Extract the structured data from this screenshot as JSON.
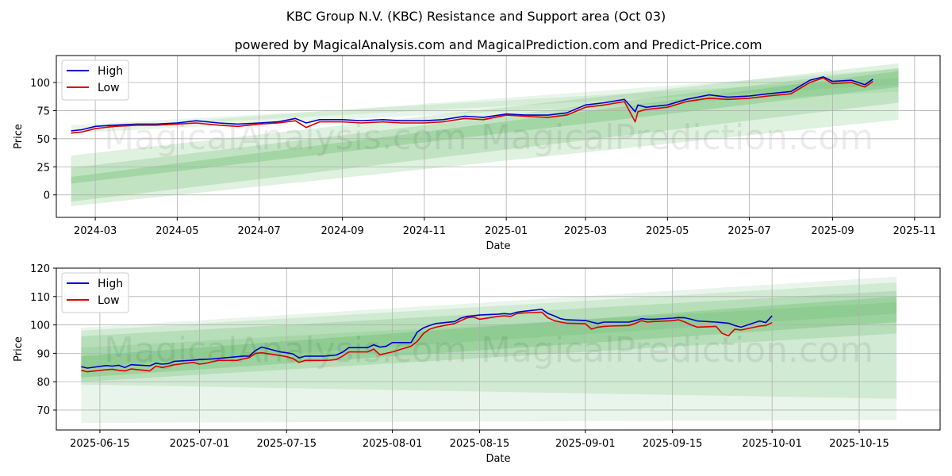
{
  "title": "KBC Group N.V. (KBC) Resistance and Support area (Oct 03)",
  "subtitle": "powered by MagicalAnalysis.com and MagicalPrediction.com and Predict-Price.com",
  "watermarks": [
    "MagicalAnalysis.com",
    "MagicalPrediction.com"
  ],
  "colors": {
    "high": "#0000cc",
    "low": "#dd0000",
    "band": "#4caf50",
    "grid": "#b0b0b0"
  },
  "chart_data": [
    {
      "type": "line",
      "xlabel": "Date",
      "ylabel": "Price",
      "xlim": [
        "2024-02-01",
        "2025-11-20"
      ],
      "ylim": [
        -20,
        124
      ],
      "yticks": [
        0,
        25,
        50,
        75,
        100
      ],
      "xticks": [
        "2024-03-01",
        "2024-05-01",
        "2024-07-01",
        "2024-09-01",
        "2024-11-01",
        "2025-01-01",
        "2025-03-01",
        "2025-05-01",
        "2025-07-01",
        "2025-09-01",
        "2025-11-01"
      ],
      "xtick_labels": [
        "2024-03",
        "2024-05",
        "2024-07",
        "2024-09",
        "2024-11",
        "2025-01",
        "2025-03",
        "2025-05",
        "2025-07",
        "2025-09",
        "2025-11"
      ],
      "legend": {
        "placement": "top-left",
        "entries": [
          "High",
          "Low"
        ]
      },
      "bands": [
        {
          "x0": "2024-02-12",
          "x1": "2025-10-20",
          "lo0": -10,
          "hi0": 35,
          "lo1": 67,
          "hi1": 117,
          "opacity": 0.18
        },
        {
          "x0": "2024-02-12",
          "x1": "2025-10-20",
          "lo0": -6,
          "hi0": 24,
          "lo1": 82,
          "hi1": 113,
          "opacity": 0.2
        },
        {
          "x0": "2024-02-12",
          "x1": "2025-10-20",
          "lo0": 10,
          "hi0": 16,
          "lo1": 96,
          "hi1": 110,
          "opacity": 0.25
        },
        {
          "x0": "2024-02-12",
          "x1": "2025-10-20",
          "lo0": 55,
          "hi0": 58,
          "lo1": 92,
          "hi1": 112,
          "opacity": 0.12
        },
        {
          "x0": "2024-02-12",
          "x1": "2025-10-20",
          "lo0": 58,
          "hi0": 62,
          "lo1": 98,
          "hi1": 104,
          "opacity": 0.12
        }
      ],
      "series": [
        {
          "name": "High",
          "x": [
            "2024-02-12",
            "2024-02-20",
            "2024-03-01",
            "2024-03-15",
            "2024-04-01",
            "2024-04-15",
            "2024-05-01",
            "2024-05-15",
            "2024-06-01",
            "2024-06-15",
            "2024-07-01",
            "2024-07-15",
            "2024-07-28",
            "2024-08-05",
            "2024-08-15",
            "2024-09-01",
            "2024-09-15",
            "2024-10-01",
            "2024-10-15",
            "2024-11-01",
            "2024-11-15",
            "2024-12-01",
            "2024-12-15",
            "2025-01-01",
            "2025-01-15",
            "2025-02-01",
            "2025-02-15",
            "2025-03-01",
            "2025-03-15",
            "2025-03-30",
            "2025-04-07",
            "2025-04-09",
            "2025-04-15",
            "2025-05-01",
            "2025-05-15",
            "2025-06-01",
            "2025-06-15",
            "2025-07-01",
            "2025-07-15",
            "2025-08-01",
            "2025-08-15",
            "2025-08-25",
            "2025-09-01",
            "2025-09-15",
            "2025-09-25",
            "2025-10-01"
          ],
          "values": [
            57,
            58,
            61,
            62,
            63,
            63,
            64,
            66,
            64,
            63,
            64,
            65,
            68,
            64,
            67,
            67,
            66,
            67,
            66,
            66,
            67,
            70,
            69,
            72,
            71,
            71,
            73,
            80,
            82,
            85,
            74,
            80,
            78,
            80,
            85,
            89,
            87,
            88,
            90,
            92,
            102,
            105,
            101,
            102,
            98,
            103
          ]
        },
        {
          "name": "Low",
          "x": [
            "2024-02-12",
            "2024-02-20",
            "2024-03-01",
            "2024-03-15",
            "2024-04-01",
            "2024-04-15",
            "2024-05-01",
            "2024-05-15",
            "2024-06-01",
            "2024-06-15",
            "2024-07-01",
            "2024-07-15",
            "2024-07-28",
            "2024-08-05",
            "2024-08-15",
            "2024-09-01",
            "2024-09-15",
            "2024-10-01",
            "2024-10-15",
            "2024-11-01",
            "2024-11-15",
            "2024-12-01",
            "2024-12-15",
            "2025-01-01",
            "2025-01-15",
            "2025-02-01",
            "2025-02-15",
            "2025-03-01",
            "2025-03-15",
            "2025-03-30",
            "2025-04-07",
            "2025-04-09",
            "2025-04-15",
            "2025-05-01",
            "2025-05-15",
            "2025-06-01",
            "2025-06-15",
            "2025-07-01",
            "2025-07-15",
            "2025-08-01",
            "2025-08-15",
            "2025-08-25",
            "2025-09-01",
            "2025-09-15",
            "2025-09-25",
            "2025-10-01"
          ],
          "values": [
            55,
            56,
            59,
            61,
            62,
            62,
            63,
            64,
            62,
            61,
            63,
            64,
            66,
            60,
            65,
            65,
            64,
            65,
            64,
            64,
            65,
            68,
            67,
            71,
            70,
            69,
            71,
            78,
            80,
            83,
            65,
            74,
            76,
            78,
            83,
            86,
            85,
            86,
            88,
            90,
            100,
            104,
            99,
            100,
            96,
            101
          ]
        }
      ]
    },
    {
      "type": "line",
      "xlabel": "Date",
      "ylabel": "Price",
      "xlim": [
        "2025-06-08",
        "2025-10-28"
      ],
      "ylim": [
        63,
        120
      ],
      "yticks": [
        70,
        80,
        90,
        100,
        110,
        120
      ],
      "xticks": [
        "2025-06-15",
        "2025-07-01",
        "2025-07-15",
        "2025-08-01",
        "2025-08-15",
        "2025-09-01",
        "2025-09-15",
        "2025-10-01",
        "2025-10-15"
      ],
      "xtick_labels": [
        "2025-06-15",
        "2025-07-01",
        "2025-07-15",
        "2025-08-01",
        "2025-08-15",
        "2025-09-01",
        "2025-09-15",
        "2025-10-01",
        "2025-10-15"
      ],
      "legend": {
        "placement": "top-left",
        "entries": [
          "High",
          "Low"
        ]
      },
      "bands": [
        {
          "x0": "2025-06-12",
          "x1": "2025-10-21",
          "lo0": 65.5,
          "hi0": 99,
          "lo1": 66.5,
          "hi1": 117,
          "opacity": 0.12
        },
        {
          "x0": "2025-06-12",
          "x1": "2025-10-21",
          "lo0": 79,
          "hi0": 98,
          "lo1": 74,
          "hi1": 115,
          "opacity": 0.15
        },
        {
          "x0": "2025-06-12",
          "x1": "2025-10-21",
          "lo0": 80,
          "hi0": 96,
          "lo1": 97,
          "hi1": 112,
          "opacity": 0.2
        },
        {
          "x0": "2025-06-12",
          "x1": "2025-10-21",
          "lo0": 81.5,
          "hi0": 89,
          "lo1": 101,
          "hi1": 110,
          "opacity": 0.25
        },
        {
          "x0": "2025-06-12",
          "x1": "2025-10-21",
          "lo0": 85,
          "hi0": 92,
          "lo1": 104,
          "hi1": 108,
          "opacity": 0.15
        }
      ],
      "series": [
        {
          "name": "High",
          "x": [
            "2025-06-12",
            "2025-06-13",
            "2025-06-16",
            "2025-06-17",
            "2025-06-18",
            "2025-06-19",
            "2025-06-20",
            "2025-06-23",
            "2025-06-24",
            "2025-06-25",
            "2025-06-26",
            "2025-06-27",
            "2025-06-30",
            "2025-07-01",
            "2025-07-02",
            "2025-07-03",
            "2025-07-04",
            "2025-07-07",
            "2025-07-08",
            "2025-07-09",
            "2025-07-10",
            "2025-07-11",
            "2025-07-14",
            "2025-07-15",
            "2025-07-16",
            "2025-07-17",
            "2025-07-18",
            "2025-07-21",
            "2025-07-22",
            "2025-07-23",
            "2025-07-24",
            "2025-07-25",
            "2025-07-28",
            "2025-07-29",
            "2025-07-30",
            "2025-07-31",
            "2025-08-01",
            "2025-08-04",
            "2025-08-05",
            "2025-08-06",
            "2025-08-07",
            "2025-08-08",
            "2025-08-11",
            "2025-08-12",
            "2025-08-13",
            "2025-08-14",
            "2025-08-15",
            "2025-08-18",
            "2025-08-19",
            "2025-08-20",
            "2025-08-21",
            "2025-08-22",
            "2025-08-25",
            "2025-08-26",
            "2025-08-27",
            "2025-08-28",
            "2025-08-29",
            "2025-09-01",
            "2025-09-02",
            "2025-09-03",
            "2025-09-04",
            "2025-09-05",
            "2025-09-08",
            "2025-09-09",
            "2025-09-10",
            "2025-09-11",
            "2025-09-12",
            "2025-09-15",
            "2025-09-16",
            "2025-09-17",
            "2025-09-18",
            "2025-09-19",
            "2025-09-22",
            "2025-09-23",
            "2025-09-24",
            "2025-09-25",
            "2025-09-26",
            "2025-09-29",
            "2025-09-30",
            "2025-10-01"
          ],
          "values": [
            85.3,
            84.8,
            85.7,
            85.5,
            85.8,
            85.0,
            86.0,
            85.6,
            86.5,
            86.2,
            86.4,
            87.2,
            87.6,
            87.8,
            87.9,
            88.0,
            88.2,
            88.8,
            89.0,
            89.0,
            91.0,
            92.2,
            90.5,
            90.2,
            89.8,
            88.4,
            89.0,
            89.0,
            89.2,
            89.4,
            90.4,
            92.0,
            92.0,
            93.0,
            92.2,
            92.5,
            93.8,
            93.8,
            97.5,
            99.0,
            99.8,
            100.5,
            101.2,
            102.4,
            103.0,
            103.2,
            103.5,
            103.8,
            104.0,
            103.8,
            104.5,
            104.8,
            105.5,
            104.0,
            103.2,
            102.2,
            101.8,
            101.6,
            101.0,
            100.5,
            101.0,
            101.0,
            101.0,
            101.5,
            102.2,
            102.0,
            102.0,
            102.4,
            102.6,
            102.5,
            102.0,
            101.4,
            101.0,
            100.8,
            100.6,
            99.8,
            99.2,
            101.4,
            100.8,
            103.2
          ]
        },
        {
          "name": "Low",
          "x": [
            "2025-06-12",
            "2025-06-13",
            "2025-06-16",
            "2025-06-17",
            "2025-06-18",
            "2025-06-19",
            "2025-06-20",
            "2025-06-23",
            "2025-06-24",
            "2025-06-25",
            "2025-06-26",
            "2025-06-27",
            "2025-06-30",
            "2025-07-01",
            "2025-07-02",
            "2025-07-03",
            "2025-07-04",
            "2025-07-07",
            "2025-07-08",
            "2025-07-09",
            "2025-07-10",
            "2025-07-11",
            "2025-07-14",
            "2025-07-15",
            "2025-07-16",
            "2025-07-17",
            "2025-07-18",
            "2025-07-21",
            "2025-07-22",
            "2025-07-23",
            "2025-07-24",
            "2025-07-25",
            "2025-07-28",
            "2025-07-29",
            "2025-07-30",
            "2025-07-31",
            "2025-08-01",
            "2025-08-04",
            "2025-08-05",
            "2025-08-06",
            "2025-08-07",
            "2025-08-08",
            "2025-08-11",
            "2025-08-12",
            "2025-08-13",
            "2025-08-14",
            "2025-08-15",
            "2025-08-18",
            "2025-08-19",
            "2025-08-20",
            "2025-08-21",
            "2025-08-22",
            "2025-08-25",
            "2025-08-26",
            "2025-08-27",
            "2025-08-28",
            "2025-08-29",
            "2025-09-01",
            "2025-09-02",
            "2025-09-03",
            "2025-09-04",
            "2025-09-05",
            "2025-09-08",
            "2025-09-09",
            "2025-09-10",
            "2025-09-11",
            "2025-09-12",
            "2025-09-15",
            "2025-09-16",
            "2025-09-17",
            "2025-09-18",
            "2025-09-19",
            "2025-09-22",
            "2025-09-23",
            "2025-09-24",
            "2025-09-25",
            "2025-09-26",
            "2025-09-29",
            "2025-09-30",
            "2025-10-01"
          ],
          "values": [
            84.0,
            83.5,
            84.2,
            84.4,
            84.0,
            83.8,
            84.5,
            83.8,
            85.5,
            85.0,
            85.5,
            86.0,
            86.8,
            86.2,
            86.5,
            87.0,
            87.5,
            87.5,
            88.0,
            88.5,
            90.0,
            90.2,
            89.2,
            88.8,
            88.2,
            86.8,
            87.5,
            87.5,
            87.6,
            87.8,
            89.0,
            90.5,
            90.5,
            91.5,
            89.5,
            90.0,
            90.5,
            92.5,
            94.2,
            97.0,
            98.5,
            99.2,
            100.5,
            101.5,
            102.5,
            102.8,
            102.0,
            103.0,
            103.2,
            103.0,
            104.0,
            104.2,
            104.5,
            102.5,
            101.5,
            101.0,
            100.6,
            100.4,
            98.5,
            99.2,
            99.5,
            99.6,
            99.8,
            100.5,
            101.5,
            101.0,
            101.2,
            101.5,
            101.8,
            101.0,
            100.0,
            99.2,
            99.5,
            97.0,
            96.2,
            98.5,
            98.2,
            99.6,
            99.8,
            100.8
          ]
        }
      ]
    }
  ]
}
